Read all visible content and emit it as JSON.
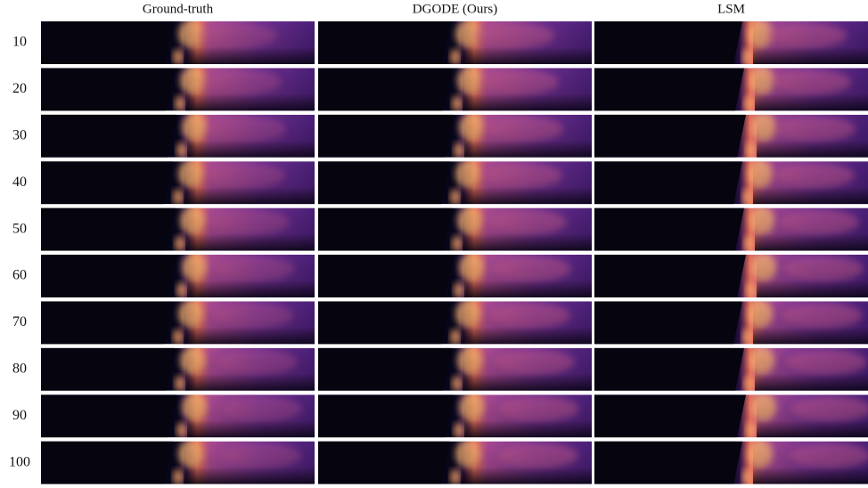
{
  "columns": [
    "Ground-truth",
    "DGODE (Ours)",
    "LSM"
  ],
  "rows": [
    "10",
    "20",
    "30",
    "40",
    "50",
    "60",
    "70",
    "80",
    "90",
    "100"
  ]
}
